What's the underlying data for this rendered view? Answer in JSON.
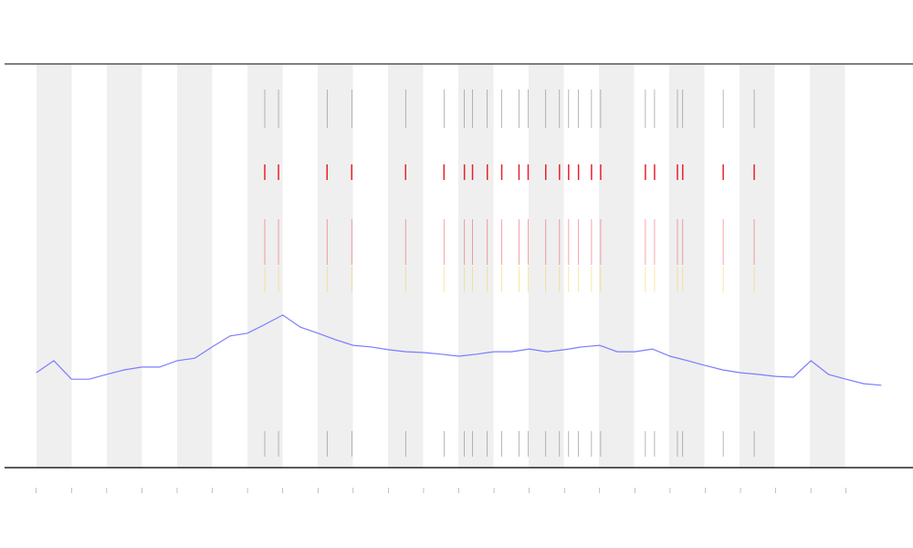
{
  "chart_data": {
    "type": "line",
    "x": [
      0,
      0.5,
      1,
      1.5,
      2,
      2.5,
      3,
      3.5,
      4,
      4.5,
      5,
      5.5,
      6,
      6.5,
      7,
      7.5,
      8,
      8.5,
      9,
      9.5,
      10,
      10.5,
      11,
      11.5,
      12,
      12.5,
      13,
      13.5,
      14,
      14.5,
      15,
      15.5,
      16,
      16.5,
      17,
      17.5,
      18,
      18.5,
      19,
      19.5,
      20,
      20.5,
      21,
      21.5,
      22,
      22.5,
      23,
      23.5,
      24
    ],
    "series": [
      {
        "color": "#7b7bff",
        "values": [
          23.5,
          26.5,
          21.9,
          21.9,
          23.1,
          24.2,
          24.9,
          24.9,
          26.5,
          27.1,
          29.9,
          32.6,
          33.3,
          35.5,
          37.8,
          34.8,
          33.3,
          31.7,
          30.3,
          29.9,
          29.2,
          28.7,
          28.5,
          28.1,
          27.6,
          28.1,
          28.7,
          28.7,
          29.4,
          28.7,
          29.2,
          29.9,
          30.3,
          28.7,
          28.7,
          29.4,
          27.6,
          26.5,
          25.3,
          24.2,
          23.5,
          23.1,
          22.6,
          22.4,
          26.5,
          23.1,
          21.9,
          20.8,
          20.4
        ]
      }
    ],
    "events": {
      "color": "#e8202a",
      "x": [
        6.49,
        6.88,
        8.26,
        8.96,
        10.49,
        11.58,
        12.16,
        12.39,
        12.81,
        13.22,
        13.71,
        13.97,
        14.47,
        14.86,
        15.12,
        15.4,
        15.77,
        16.03,
        17.3,
        17.56,
        18.21,
        18.36,
        19.51,
        20.39
      ]
    },
    "xlim": [
      -0.9,
      24.9
    ],
    "ylim": [
      0,
      100
    ],
    "xticks": [
      0,
      1,
      2,
      3,
      4,
      5,
      6,
      7,
      8,
      9,
      10,
      11,
      12,
      13,
      14,
      15,
      16,
      17,
      18,
      19,
      20,
      21,
      22,
      23
    ]
  }
}
